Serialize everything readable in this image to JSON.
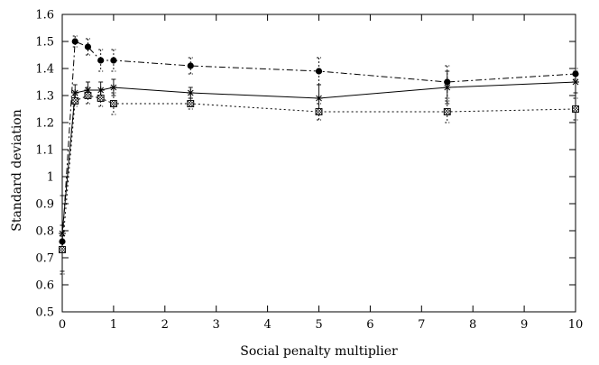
{
  "chart_data": {
    "type": "line",
    "title": "",
    "xlabel": "Social penalty multiplier",
    "ylabel": "Standard deviation",
    "xlim": [
      0,
      10
    ],
    "ylim": [
      0.5,
      1.6
    ],
    "xticks": [
      "0",
      "1",
      "2",
      "3",
      "4",
      "5",
      "6",
      "7",
      "8",
      "9",
      "10"
    ],
    "yticks": [
      "0.5",
      "0.6",
      "0.7",
      "0.8",
      "0.9",
      "1",
      "1.1",
      "1.2",
      "1.3",
      "1.4",
      "1.5",
      "1.6"
    ],
    "grid": false,
    "legend": "none",
    "series": [
      {
        "line_style": "dash-dot",
        "marker": "filled-circle",
        "color": "#000000",
        "x": [
          0,
          0.25,
          0.5,
          0.75,
          1,
          2.5,
          5,
          7.5,
          10
        ],
        "y": [
          0.76,
          1.5,
          1.48,
          1.43,
          1.43,
          1.41,
          1.39,
          1.35,
          1.38
        ],
        "err": [
          0.02,
          0.02,
          0.03,
          0.04,
          0.04,
          0.03,
          0.05,
          0.06,
          0.02
        ]
      },
      {
        "line_style": "solid",
        "marker": "asterisk",
        "color": "#000000",
        "x": [
          0,
          0.25,
          0.5,
          0.75,
          1,
          2.5,
          5,
          7.5,
          10
        ],
        "y": [
          0.79,
          1.31,
          1.32,
          1.32,
          1.33,
          1.31,
          1.29,
          1.33,
          1.35
        ],
        "err": [
          0.14,
          0.03,
          0.03,
          0.03,
          0.03,
          0.02,
          0.05,
          0.06,
          0.04
        ]
      },
      {
        "line_style": "dotted",
        "marker": "hatched-square",
        "color": "#000000",
        "x": [
          0,
          0.25,
          0.5,
          0.75,
          1,
          2.5,
          5,
          7.5,
          10
        ],
        "y": [
          0.73,
          1.28,
          1.3,
          1.29,
          1.27,
          1.27,
          1.24,
          1.24,
          1.25
        ],
        "err": [
          0.09,
          0.02,
          0.03,
          0.03,
          0.04,
          0.02,
          0.03,
          0.04,
          0.04
        ]
      }
    ]
  }
}
